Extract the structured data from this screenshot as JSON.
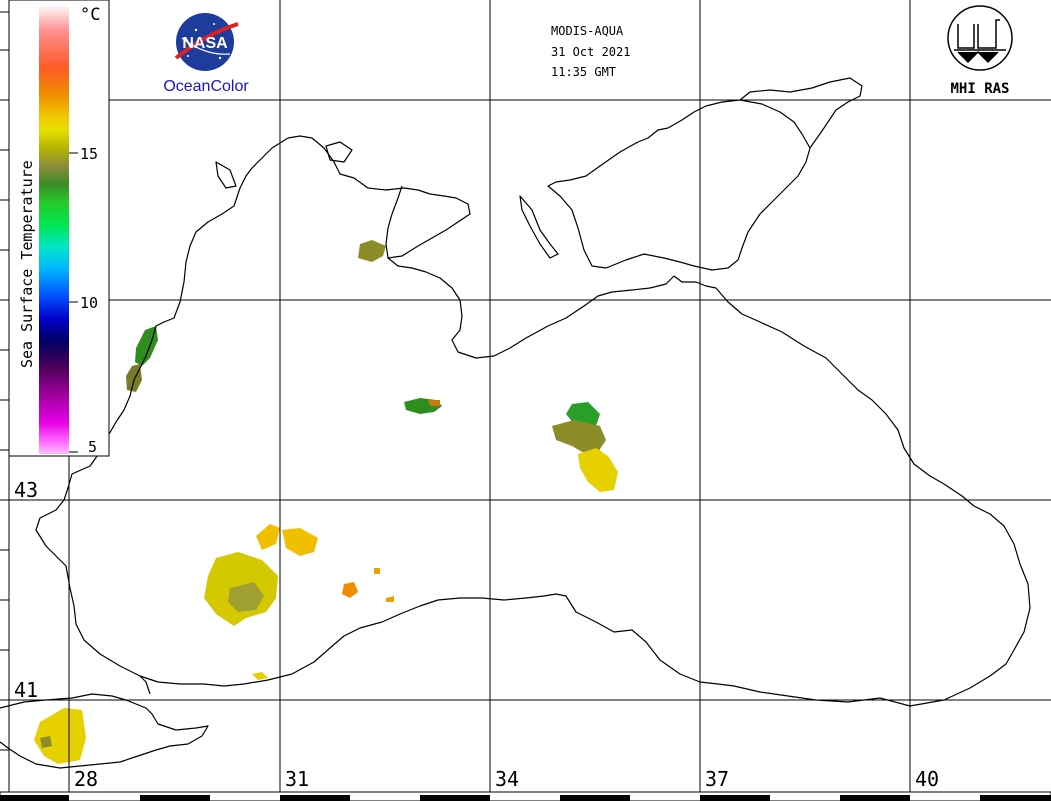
{
  "header": {
    "sensor": "MODIS-AQUA",
    "date": "31 Oct 2021",
    "time": "11:35 GMT"
  },
  "logos": {
    "nasa_text": "NASA",
    "oceancolor_text": "OceanColor",
    "mhi_text": "MHI RAS"
  },
  "colorbar": {
    "title": "Sea Surface Temperature",
    "unit": "°C",
    "ticks": [
      "15",
      "10",
      "5"
    ],
    "colors": [
      "#ffffff",
      "#ff9090",
      "#ff5a28",
      "#f08c00",
      "#f0c800",
      "#e6e000",
      "#b4b400",
      "#8c8c3c",
      "#3c8c28",
      "#28c828",
      "#00e650",
      "#00e6c8",
      "#00b4ff",
      "#0050ff",
      "#0000c8",
      "#000064",
      "#50005a",
      "#a000a0",
      "#e600e6",
      "#ff64ff",
      "#ffbeff"
    ]
  },
  "grid": {
    "lat_labels": [
      "43",
      "41"
    ],
    "lon_labels": [
      "28",
      "31",
      "34",
      "37",
      "40"
    ]
  },
  "map": {
    "region": "Black Sea",
    "land_color": "#ffffff",
    "coast_color": "#000000",
    "patch_colors": {
      "green": "#2f8c1e",
      "olive": "#8c8c28",
      "yellow": "#e6d000",
      "gold": "#f0c000",
      "orange": "#f08c00"
    }
  }
}
